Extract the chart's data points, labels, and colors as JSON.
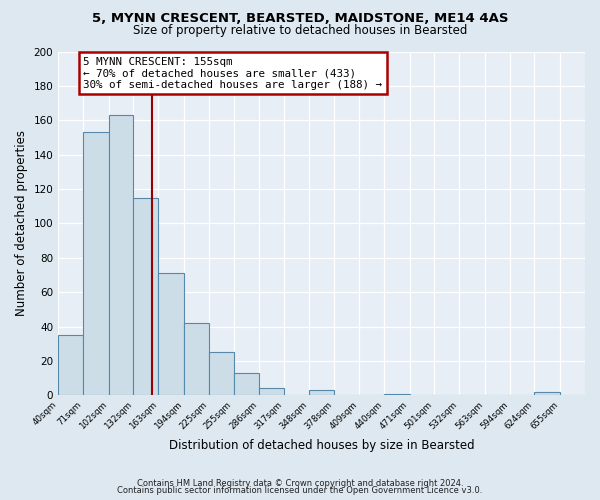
{
  "title": "5, MYNN CRESCENT, BEARSTED, MAIDSTONE, ME14 4AS",
  "subtitle": "Size of property relative to detached houses in Bearsted",
  "xlabel": "Distribution of detached houses by size in Bearsted",
  "ylabel": "Number of detached properties",
  "bar_labels": [
    "40sqm",
    "71sqm",
    "102sqm",
    "132sqm",
    "163sqm",
    "194sqm",
    "225sqm",
    "255sqm",
    "286sqm",
    "317sqm",
    "348sqm",
    "378sqm",
    "409sqm",
    "440sqm",
    "471sqm",
    "501sqm",
    "532sqm",
    "563sqm",
    "594sqm",
    "624sqm",
    "655sqm"
  ],
  "bar_values": [
    35,
    153,
    163,
    115,
    71,
    42,
    25,
    13,
    4,
    0,
    3,
    0,
    0,
    1,
    0,
    0,
    0,
    0,
    0,
    2,
    0
  ],
  "bar_edges": [
    40,
    71,
    102,
    132,
    163,
    194,
    225,
    255,
    286,
    317,
    348,
    378,
    409,
    440,
    471,
    501,
    532,
    563,
    594,
    624,
    655,
    686
  ],
  "bar_color": "#ccdde8",
  "bar_edge_color": "#5588aa",
  "red_line_x": 155,
  "annotation_title": "5 MYNN CRESCENT: 155sqm",
  "annotation_line1": "← 70% of detached houses are smaller (433)",
  "annotation_line2": "30% of semi-detached houses are larger (188) →",
  "annotation_box_color": "#ffffff",
  "annotation_box_edge": "#aa0000",
  "ylim": [
    0,
    200
  ],
  "yticks": [
    0,
    20,
    40,
    60,
    80,
    100,
    120,
    140,
    160,
    180,
    200
  ],
  "footer1": "Contains HM Land Registry data © Crown copyright and database right 2024.",
  "footer2": "Contains public sector information licensed under the Open Government Licence v3.0.",
  "bg_color": "#dde8f0",
  "plot_bg_color": "#e8eef5"
}
